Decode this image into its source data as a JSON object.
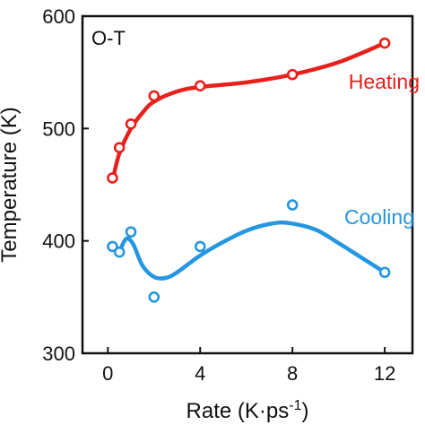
{
  "panel_label": "O-T",
  "colors": {
    "Heating": "#e8201c",
    "Cooling": "#2596e0",
    "axis": "#111111"
  },
  "chart_data": {
    "type": "scatter",
    "xlabel": "Rate (K·ps",
    "xlabel_superscript": "-1",
    "xlabel_close": ")",
    "ylabel": "Temperature (K)",
    "xlim": [
      -1.1,
      13.2
    ],
    "ylim": [
      300,
      600
    ],
    "xticks": [
      0,
      4,
      8,
      12
    ],
    "yticks": [
      300,
      400,
      500,
      600
    ],
    "grid": false,
    "series": [
      {
        "name": "Heating",
        "points": [
          [
            0.2,
            456
          ],
          [
            0.5,
            483
          ],
          [
            1,
            504
          ],
          [
            2,
            529
          ],
          [
            4,
            538
          ],
          [
            8,
            548
          ],
          [
            12,
            576
          ]
        ],
        "fit": [
          [
            0.2,
            453
          ],
          [
            0.5,
            478
          ],
          [
            1,
            500
          ],
          [
            1.5,
            514
          ],
          [
            2,
            524
          ],
          [
            3,
            533
          ],
          [
            4,
            537
          ],
          [
            6,
            541
          ],
          [
            8,
            548
          ],
          [
            10,
            559
          ],
          [
            12,
            576
          ]
        ]
      },
      {
        "name": "Cooling",
        "points": [
          [
            0.2,
            395
          ],
          [
            0.5,
            390
          ],
          [
            1,
            408
          ],
          [
            2,
            350
          ],
          [
            4,
            395
          ],
          [
            8,
            432
          ],
          [
            12,
            372
          ]
        ],
        "fit": [
          [
            0.2,
            395
          ],
          [
            0.5,
            392
          ],
          [
            0.8,
            402
          ],
          [
            1.1,
            397
          ],
          [
            1.5,
            378
          ],
          [
            2,
            368
          ],
          [
            2.5,
            367
          ],
          [
            3,
            372
          ],
          [
            4,
            387
          ],
          [
            5,
            399
          ],
          [
            6,
            409
          ],
          [
            7,
            415
          ],
          [
            7.8,
            416
          ],
          [
            9,
            410
          ],
          [
            10,
            398
          ],
          [
            11,
            385
          ],
          [
            12,
            372
          ]
        ]
      }
    ]
  }
}
